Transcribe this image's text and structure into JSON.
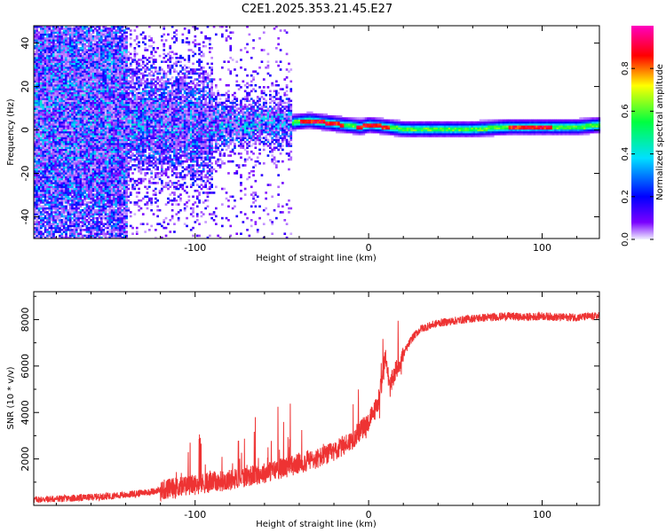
{
  "chart_data": [
    {
      "type": "heatmap",
      "title": "C2E1.2025.353.21.45.E27",
      "xlabel": "Height of straight line (km)",
      "ylabel": "Frequency (Hz)",
      "xlim": [
        -193,
        133
      ],
      "ylim": [
        -50,
        48
      ],
      "x_ticks": [
        -100,
        0,
        100
      ],
      "y_ticks": [
        -40,
        -20,
        0,
        20,
        40
      ],
      "colorbar": {
        "label": "Normalized spectral amplitude",
        "range": [
          0,
          1
        ],
        "ticks": [
          "0.0",
          "0.2",
          "0.4",
          "0.6",
          "0.8"
        ],
        "colors": [
          "#f0f0ff",
          "#7a00ff",
          "#0000ff",
          "#00e0ff",
          "#00ff40",
          "#ffff00",
          "#ff0000",
          "#ff00c0"
        ]
      },
      "ridge": {
        "description_values": "dominant frequency (Hz) vs height (km)",
        "x": [
          -190,
          -150,
          -120,
          -100,
          -80,
          -60,
          -45,
          -35,
          -25,
          -15,
          -5,
          0,
          10,
          20,
          40,
          60,
          80,
          100,
          120,
          133
        ],
        "y": [
          5,
          4,
          3,
          2,
          2,
          3,
          3,
          4,
          3,
          2,
          1,
          2,
          1,
          0,
          0,
          0,
          1,
          1,
          1,
          2
        ]
      }
    },
    {
      "type": "line",
      "title": "",
      "xlabel": "Height of straight line (km)",
      "ylabel": "SNR (10 * v/v)",
      "xlim": [
        -193,
        133
      ],
      "ylim": [
        0,
        9200
      ],
      "x_ticks": [
        -100,
        0,
        100
      ],
      "y_ticks": [
        2000,
        4000,
        6000,
        8000
      ],
      "series": [
        {
          "name": "SNR",
          "color": "#ee3333",
          "x": [
            -193,
            -180,
            -160,
            -140,
            -120,
            -100,
            -80,
            -60,
            -45,
            -35,
            -30,
            -20,
            -10,
            -5,
            0,
            5,
            8,
            10,
            12,
            15,
            20,
            25,
            30,
            40,
            50,
            60,
            70,
            80,
            90,
            100,
            110,
            120,
            133
          ],
          "y": [
            250,
            280,
            350,
            450,
            650,
            900,
            1100,
            1400,
            1700,
            1900,
            2000,
            2300,
            2800,
            3200,
            3600,
            4300,
            5500,
            6500,
            5000,
            5700,
            6500,
            7200,
            7600,
            7850,
            7950,
            8050,
            8100,
            8150,
            8100,
            8150,
            8100,
            8100,
            8150
          ]
        }
      ]
    }
  ]
}
